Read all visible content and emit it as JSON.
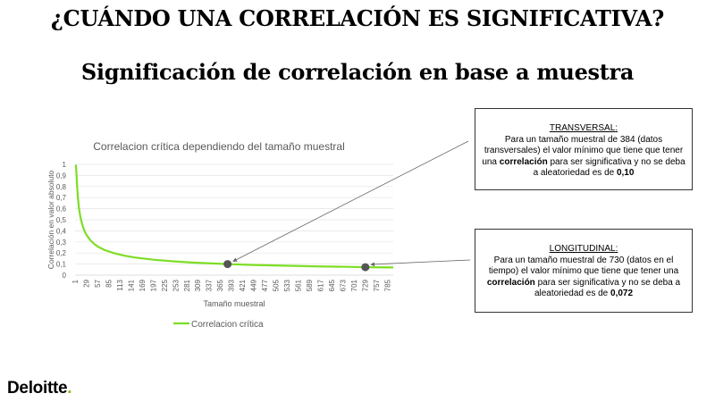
{
  "header": {
    "title": "¿CUÁNDO UNA CORRELACIÓN ES SIGNIFICATIVA?",
    "subtitle": "Significación de correlación en base a muestra"
  },
  "chart_data": {
    "type": "line",
    "title": "Correlacion crítica dependiendo del tamaño muestral",
    "xlabel": "Tamaño muestral",
    "ylabel": "Correlación en valor absoluto",
    "ylim": [
      0,
      1
    ],
    "yticks": [
      "0",
      "0,1",
      "0,2",
      "0,3",
      "0,4",
      "0,5",
      "0,6",
      "0,7",
      "0,8",
      "0,9",
      "1"
    ],
    "xticks": [
      "1",
      "29",
      "57",
      "85",
      "113",
      "141",
      "169",
      "197",
      "225",
      "253",
      "281",
      "309",
      "337",
      "365",
      "393",
      "421",
      "449",
      "477",
      "505",
      "533",
      "561",
      "589",
      "617",
      "645",
      "673",
      "701",
      "729",
      "757",
      "785"
    ],
    "xlim": [
      1,
      800
    ],
    "legend_position": "bottom-left",
    "color": "#7dde25",
    "series": [
      {
        "name": "Correlacion crítica",
        "x": [
          3,
          4,
          5,
          6,
          8,
          10,
          12,
          15,
          20,
          25,
          30,
          40,
          50,
          60,
          75,
          100,
          125,
          150,
          200,
          250,
          300,
          384,
          450,
          500,
          600,
          700,
          730,
          800
        ],
        "y": [
          0.997,
          0.95,
          0.878,
          0.811,
          0.707,
          0.632,
          0.576,
          0.514,
          0.444,
          0.396,
          0.361,
          0.312,
          0.279,
          0.254,
          0.227,
          0.197,
          0.176,
          0.16,
          0.139,
          0.124,
          0.113,
          0.1,
          0.092,
          0.088,
          0.08,
          0.074,
          0.072,
          0.069
        ]
      }
    ],
    "highlighted_points": [
      {
        "x": 384,
        "y": 0.1
      },
      {
        "x": 730,
        "y": 0.072
      }
    ]
  },
  "callouts": [
    {
      "heading": "TRANSVERSAL",
      "text_1": "Para un tamaño muestral de 384 (datos transversales) el valor mínimo que tiene que tener una ",
      "bold_1": "correlación",
      "text_2": " para ser significativa  y no se deba a aleatoriedad es de ",
      "bold_2": "0,10"
    },
    {
      "heading": "LONGITUDINAL",
      "text_1": "Para un tamaño muestral de 730 (datos en el tiempo) el valor mínimo que tiene que tener una ",
      "bold_1": "correlación",
      "text_2": " para ser significativa  y no se deba a aleatoriedad es de ",
      "bold_2": "0,072"
    }
  ],
  "logo": {
    "text": "Deloitte",
    "dot": "."
  }
}
